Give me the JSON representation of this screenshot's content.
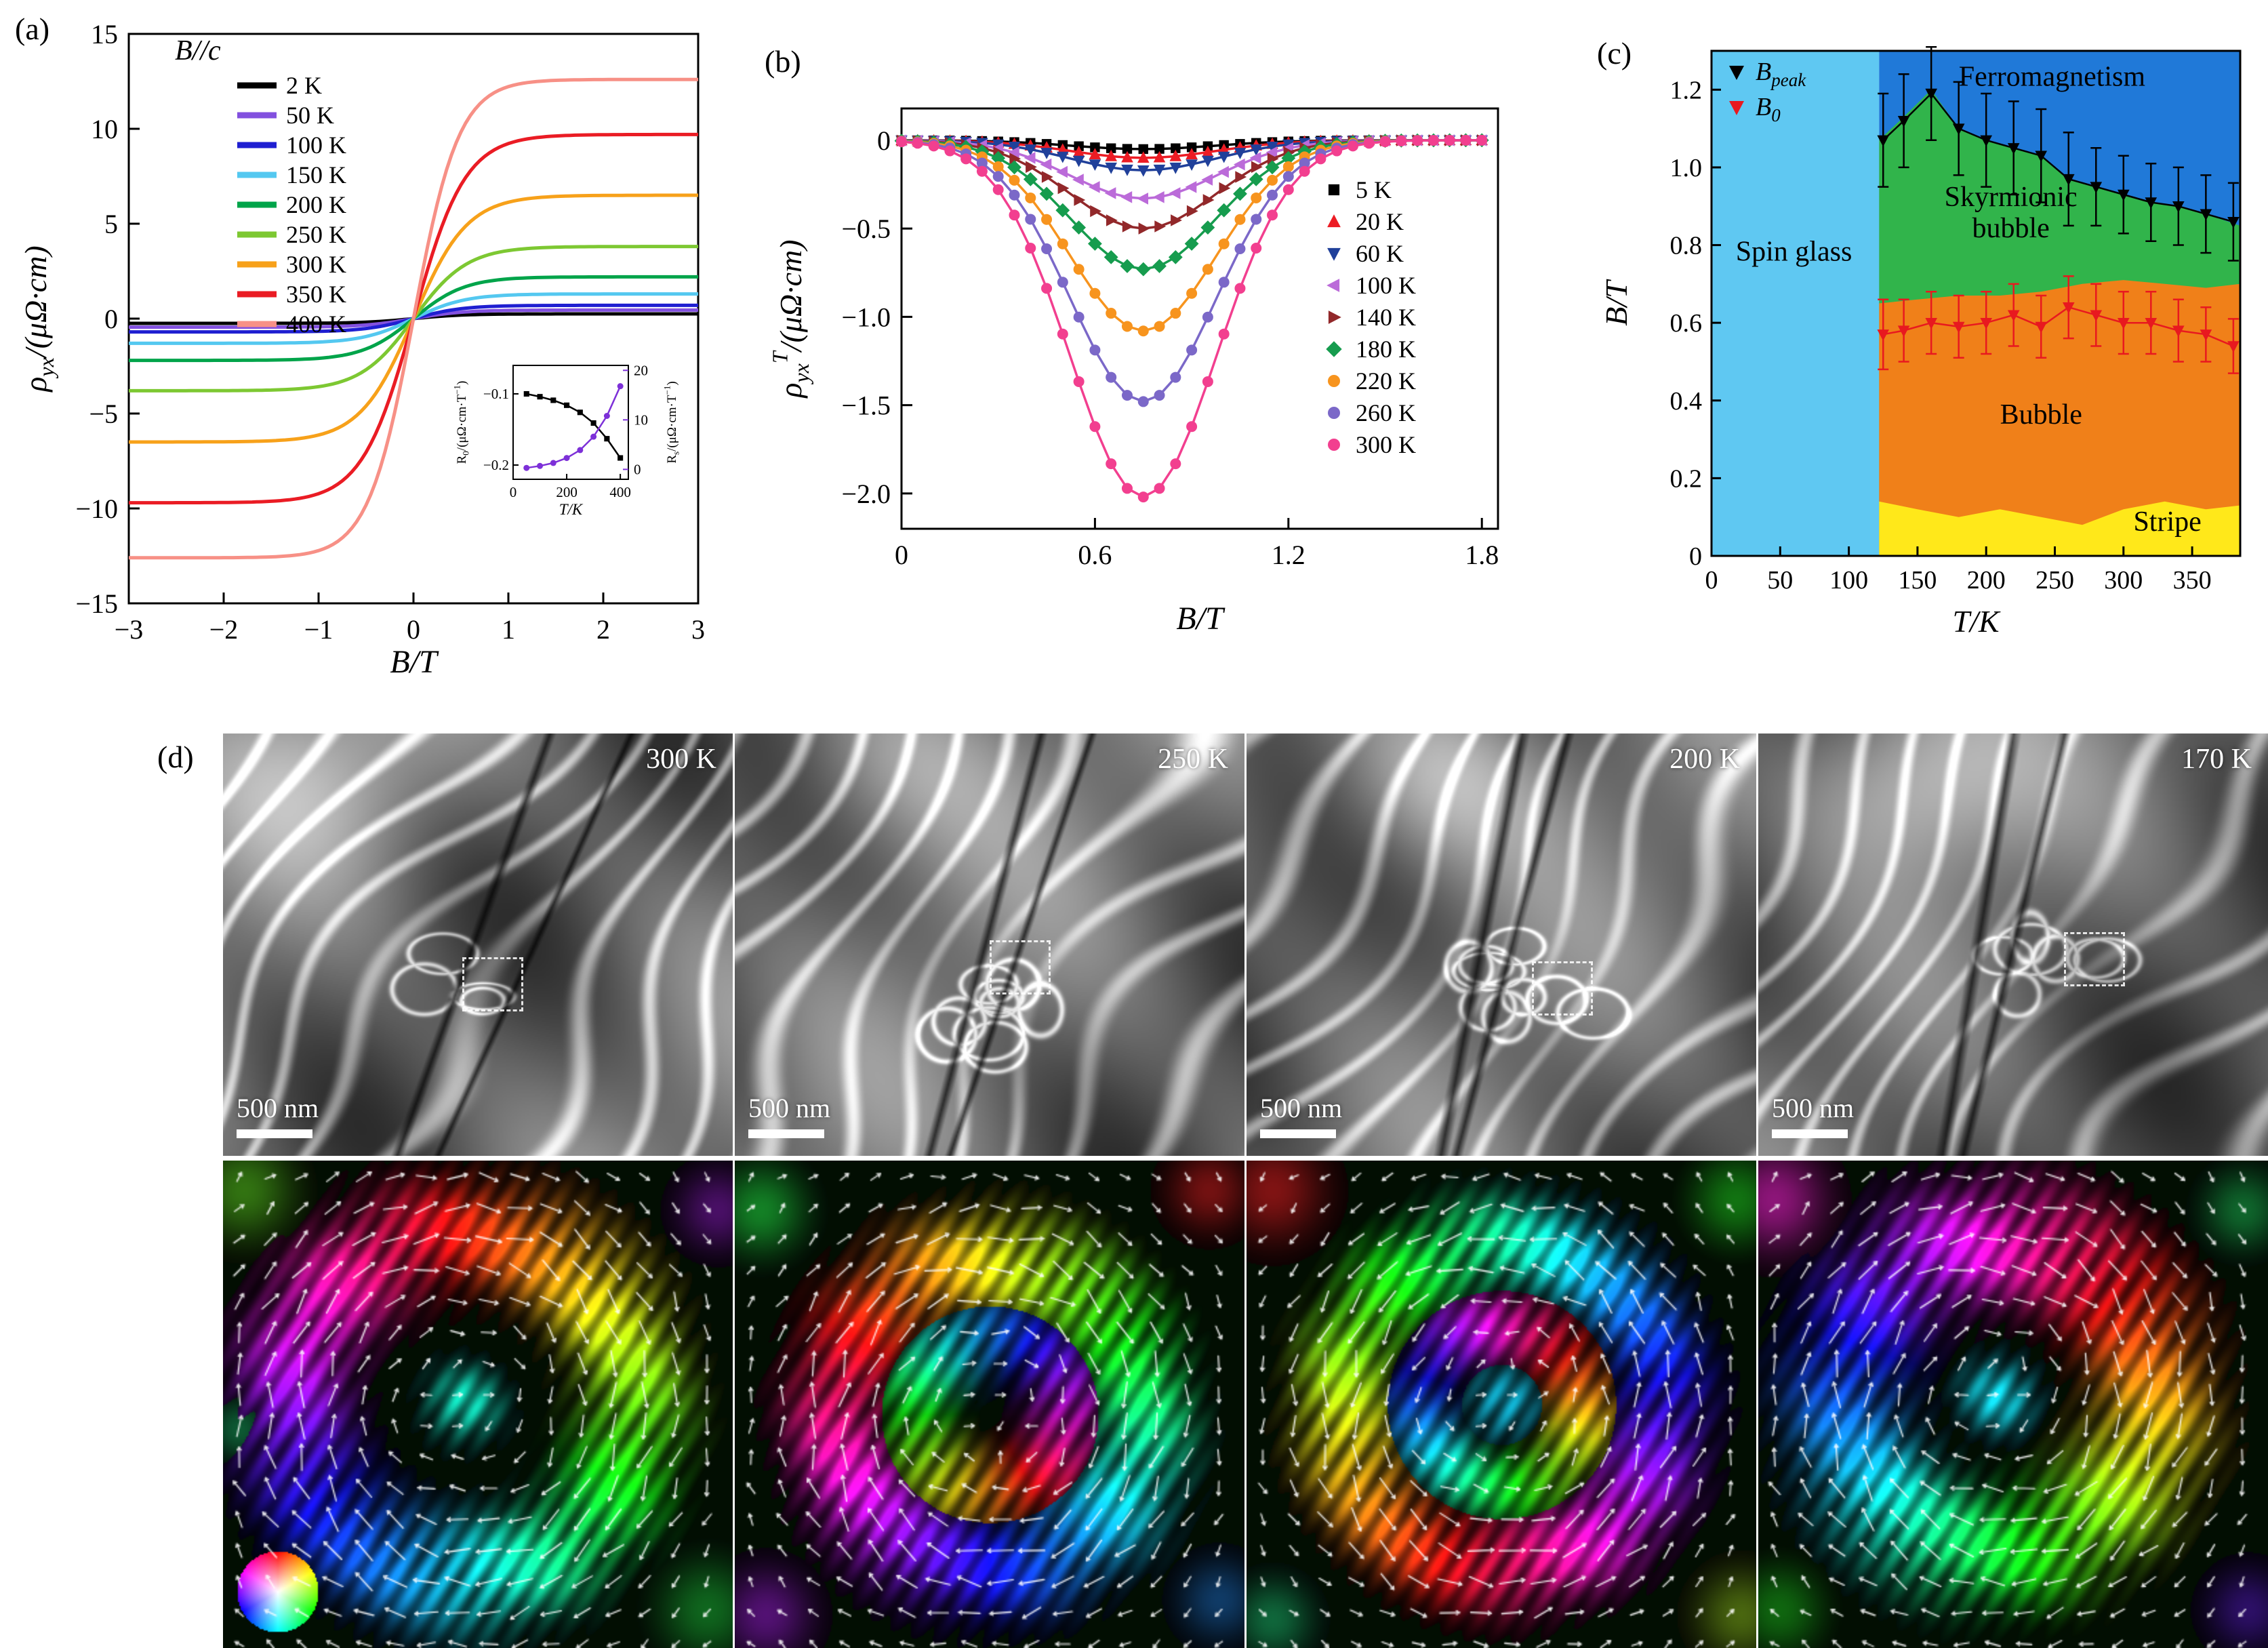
{
  "panels": {
    "a": {
      "tag": "(a)"
    },
    "b": {
      "tag": "(b)"
    },
    "c": {
      "tag": "(c)"
    },
    "d": {
      "tag": "(d)"
    }
  },
  "panel_d": {
    "scale_label": "500 nm",
    "images": [
      {
        "temp": "300 K"
      },
      {
        "temp": "250 K"
      },
      {
        "temp": "200 K"
      },
      {
        "temp": "170 K"
      }
    ]
  },
  "chart_data": [
    {
      "id": "a",
      "type": "line",
      "xlabel": "B/T",
      "ylabel": "ρ_{yx}/(μΩ·cm)",
      "annotation": "B//c",
      "xlim": [
        -3,
        3
      ],
      "ylim": [
        -15,
        15
      ],
      "xticks": [
        -3,
        -2,
        -1,
        0,
        1,
        2,
        3
      ],
      "yticks": [
        -15,
        -10,
        -5,
        0,
        5,
        10,
        15
      ],
      "legend_position": "top-left",
      "series": [
        {
          "name": "2 K",
          "color": "#000000",
          "saturation": 0.25,
          "knee": 1.2
        },
        {
          "name": "50 K",
          "color": "#8250df",
          "saturation": 0.45,
          "knee": 1.2
        },
        {
          "name": "100 K",
          "color": "#1f1fd1",
          "saturation": 0.7,
          "knee": 1.2
        },
        {
          "name": "150 K",
          "color": "#54c8f0",
          "saturation": 1.3,
          "knee": 1.25
        },
        {
          "name": "200 K",
          "color": "#00a44a",
          "saturation": 2.2,
          "knee": 1.25
        },
        {
          "name": "250 K",
          "color": "#7dc832",
          "saturation": 3.8,
          "knee": 1.3
        },
        {
          "name": "300 K",
          "color": "#f7a11a",
          "saturation": 6.5,
          "knee": 1.3
        },
        {
          "name": "350 K",
          "color": "#ea1c24",
          "saturation": 9.7,
          "knee": 1.25
        },
        {
          "name": "400 K",
          "color": "#f79086",
          "saturation": 12.6,
          "knee": 1.1
        }
      ]
    },
    {
      "id": "a_inset",
      "type": "line",
      "xlabel": "T/K",
      "ylabel_left": "R_{0}/(μΩ·cm·T^{−1})",
      "ylabel_right": "R_{s}/(μΩ·cm·T^{−1})",
      "xlim": [
        0,
        430
      ],
      "xticks": [
        0,
        200,
        400
      ],
      "ylim_left": [
        -0.22,
        -0.06
      ],
      "yticks_left": [
        -0.1,
        -0.2
      ],
      "ylim_right": [
        -2,
        21
      ],
      "yticks_right": [
        0,
        10,
        20
      ],
      "right_color": "#7d30d8",
      "series": [
        {
          "name": "R0",
          "axis": "left",
          "color": "#000000",
          "marker": "square",
          "x": [
            50,
            100,
            150,
            200,
            250,
            300,
            350,
            400
          ],
          "y": [
            -0.1,
            -0.104,
            -0.109,
            -0.116,
            -0.126,
            -0.141,
            -0.163,
            -0.19
          ]
        },
        {
          "name": "Rs",
          "axis": "right",
          "color": "#7d30d8",
          "marker": "circle",
          "x": [
            50,
            100,
            150,
            200,
            250,
            300,
            350,
            400
          ],
          "y": [
            0.3,
            0.7,
            1.3,
            2.3,
            3.9,
            6.6,
            10.8,
            16.8
          ]
        }
      ]
    },
    {
      "id": "b",
      "type": "line",
      "xlabel": "B/T",
      "ylabel": "ρ_{yx}^{T}/(μΩ·cm)",
      "xlim": [
        0,
        1.85
      ],
      "ylim": [
        -2.2,
        0.18
      ],
      "xticks": [
        0,
        0.6,
        1.2,
        1.8
      ],
      "xtick_labels": [
        "0",
        "0.6",
        "1.2",
        "1.8"
      ],
      "yticks": [
        0,
        -0.5,
        -1.0,
        -1.5,
        -2.0
      ],
      "ytick_labels": [
        "0",
        "−0.5",
        "−1.0",
        "−1.5",
        "−2.0"
      ],
      "dip_center": 0.75,
      "dip_width": 0.32,
      "legend_position": "middle-right",
      "series": [
        {
          "name": "5 K",
          "color": "#000000",
          "marker": "square",
          "depth": 0.05
        },
        {
          "name": "20 K",
          "color": "#ec1c24",
          "marker": "triangle-up",
          "depth": 0.1
        },
        {
          "name": "60 K",
          "color": "#20409a",
          "marker": "triangle-down",
          "depth": 0.17
        },
        {
          "name": "100 K",
          "color": "#bb6bd9",
          "marker": "triangle-left",
          "depth": 0.33
        },
        {
          "name": "140 K",
          "color": "#92282a",
          "marker": "triangle-right",
          "depth": 0.5
        },
        {
          "name": "180 K",
          "color": "#169c4e",
          "marker": "diamond",
          "depth": 0.73
        },
        {
          "name": "220 K",
          "color": "#f7941e",
          "marker": "circle",
          "depth": 1.08
        },
        {
          "name": "260 K",
          "color": "#7b68c8",
          "marker": "circle",
          "depth": 1.48
        },
        {
          "name": "300 K",
          "color": "#f23f8f",
          "marker": "circle",
          "depth": 2.02
        }
      ]
    },
    {
      "id": "c",
      "type": "phase-diagram",
      "xlabel": "T/K",
      "ylabel": "B/T",
      "xlim": [
        0,
        385
      ],
      "ylim": [
        0,
        1.3
      ],
      "xticks": [
        0,
        50,
        100,
        150,
        200,
        250,
        300,
        350
      ],
      "yticks": [
        0,
        0.2,
        0.4,
        0.6,
        0.8,
        1.0,
        1.2
      ],
      "ytick_labels": [
        "0",
        "0.2",
        "0.4",
        "0.6",
        "0.8",
        "1.0",
        "1.2"
      ],
      "regions": [
        {
          "name": "Spin glass",
          "color": "#5fc8f2",
          "label_pos": [
            60,
            0.76
          ]
        },
        {
          "name": "Ferromagnetism",
          "color": "#2079d8",
          "label_pos": [
            248,
            1.21
          ]
        },
        {
          "name": "Skyrmionic bubble",
          "color": "#31b44b",
          "label_lines": [
            "Skyrmionic",
            "bubble"
          ],
          "label_pos": [
            218,
            0.9
          ]
        },
        {
          "name": "Bubble",
          "color": "#f08019",
          "label_pos": [
            240,
            0.34
          ]
        },
        {
          "name": "Stripe",
          "color": "#ffe81a",
          "label_pos": [
            332,
            0.065
          ]
        }
      ],
      "boundaries": {
        "spin_glass_T": 122,
        "stripe_top": {
          "T": [
            122,
            150,
            180,
            210,
            240,
            270,
            300,
            330,
            360,
            385
          ],
          "B": [
            0.14,
            0.12,
            0.1,
            0.12,
            0.1,
            0.08,
            0.12,
            0.14,
            0.12,
            0.13
          ]
        },
        "bubble_top": {
          "T": [
            122,
            150,
            180,
            210,
            240,
            270,
            300,
            330,
            360,
            385
          ],
          "B": [
            0.65,
            0.66,
            0.67,
            0.67,
            0.68,
            0.7,
            0.71,
            0.7,
            0.69,
            0.7
          ]
        },
        "skyrmion_top": {
          "T": [
            122,
            140,
            160,
            180,
            200,
            220,
            240,
            260,
            280,
            300,
            320,
            340,
            360,
            385
          ],
          "B": [
            1.07,
            1.13,
            1.2,
            1.1,
            1.07,
            1.05,
            1.03,
            0.97,
            0.95,
            0.93,
            0.91,
            0.9,
            0.88,
            0.85
          ]
        }
      },
      "series": [
        {
          "name": "B_{peak}",
          "color": "#000000",
          "marker": "triangle-down",
          "T": [
            125,
            140,
            160,
            180,
            200,
            220,
            240,
            260,
            280,
            300,
            320,
            340,
            360,
            380
          ],
          "B": [
            1.07,
            1.12,
            1.19,
            1.1,
            1.07,
            1.05,
            1.03,
            0.97,
            0.95,
            0.93,
            0.91,
            0.9,
            0.88,
            0.86
          ],
          "err": [
            0.12,
            0.12,
            0.12,
            0.12,
            0.12,
            0.12,
            0.12,
            0.12,
            0.1,
            0.1,
            0.1,
            0.1,
            0.1,
            0.1
          ]
        },
        {
          "name": "B_{0}",
          "color": "#e8191f",
          "marker": "triangle-down",
          "T": [
            125,
            140,
            160,
            180,
            200,
            220,
            240,
            260,
            280,
            300,
            320,
            340,
            360,
            380
          ],
          "B": [
            0.57,
            0.58,
            0.6,
            0.59,
            0.6,
            0.62,
            0.59,
            0.64,
            0.62,
            0.6,
            0.6,
            0.58,
            0.57,
            0.54
          ],
          "err": [
            0.09,
            0.08,
            0.08,
            0.08,
            0.08,
            0.08,
            0.08,
            0.08,
            0.08,
            0.08,
            0.08,
            0.08,
            0.07,
            0.07
          ]
        }
      ]
    }
  ]
}
